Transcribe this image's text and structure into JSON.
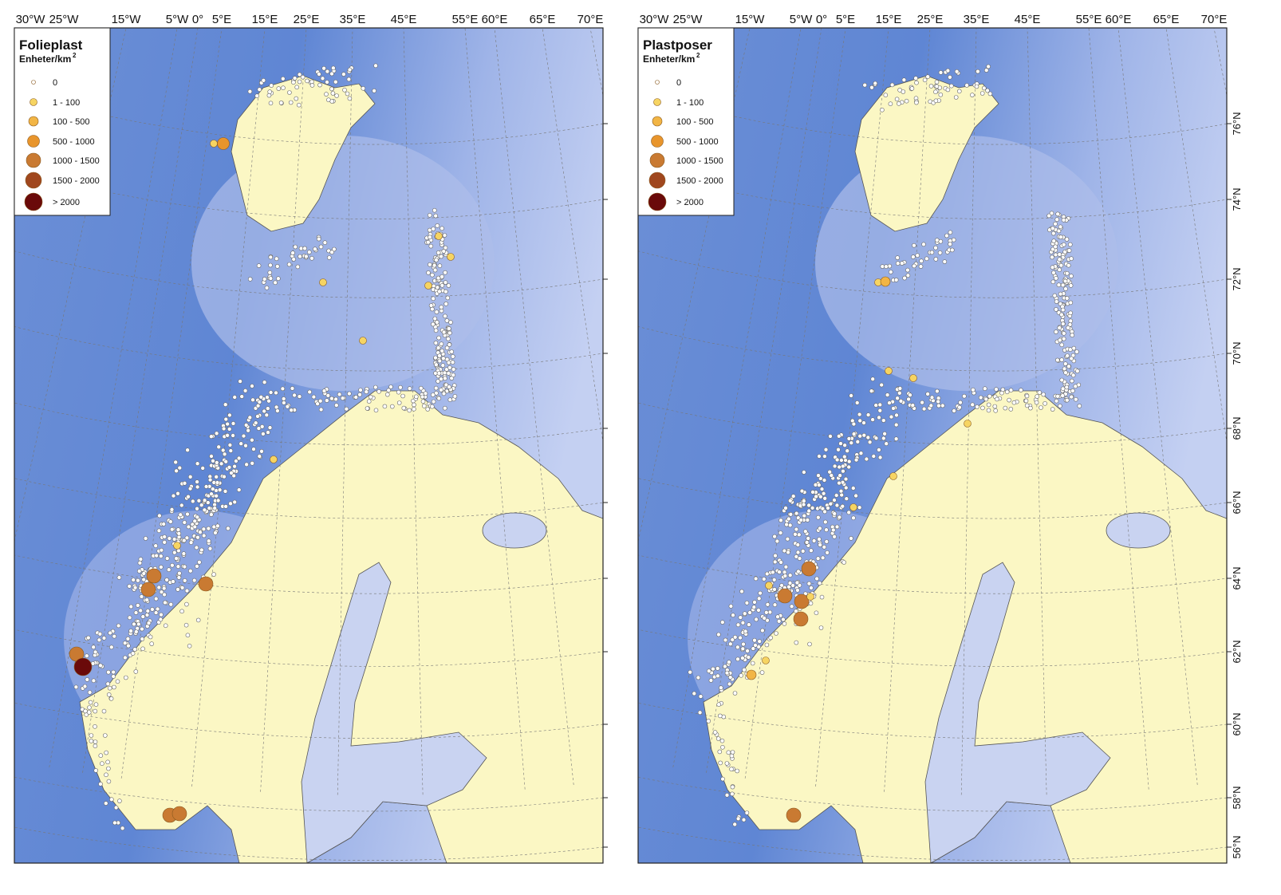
{
  "longitude_labels": [
    "30°W",
    "25°W",
    "15°W",
    "5°W",
    "0°",
    "5°E",
    "15°E",
    "25°E",
    "35°E",
    "45°E",
    "55°E",
    "60°E",
    "65°E",
    "70°E"
  ],
  "latitude_labels": [
    "76°N",
    "74°N",
    "72°N",
    "70°N",
    "68°N",
    "66°N",
    "64°N",
    "62°N",
    "60°N",
    "58°N",
    "56°N"
  ],
  "panels": [
    {
      "legend": {
        "title": "Folieplast",
        "unit": "Enheter/km",
        "unit_exponent": "2",
        "entries": [
          "0",
          "1 - 100",
          "100 - 500",
          "500 - 1000",
          "1000 - 1500",
          "1500 - 2000",
          "> 2000"
        ]
      }
    },
    {
      "legend": {
        "title": "Plastposer",
        "unit": "Enheter/km",
        "unit_exponent": "2",
        "entries": [
          "0",
          "1 - 100",
          "100 - 500",
          "500 - 1000",
          "1000 - 1500",
          "1500 - 2000",
          "> 2000"
        ]
      }
    }
  ]
}
